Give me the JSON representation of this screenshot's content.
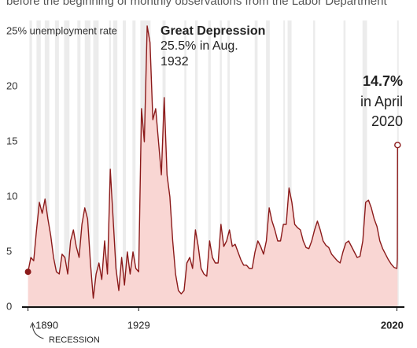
{
  "chart_data": {
    "type": "line",
    "subtitle": "before the beginning of monthly observations from the Labor Department",
    "x": [
      1890,
      1891,
      1892,
      1893,
      1894,
      1895,
      1896,
      1897,
      1898,
      1899,
      1900,
      1901,
      1902,
      1903,
      1904,
      1905,
      1906,
      1907,
      1908,
      1909,
      1910,
      1911,
      1912,
      1913,
      1914,
      1915,
      1916,
      1917,
      1918,
      1919,
      1920,
      1921,
      1922,
      1923,
      1924,
      1925,
      1926,
      1927,
      1928,
      1929,
      1930,
      1931,
      1932,
      1933,
      1934,
      1935,
      1936,
      1937,
      1938,
      1939,
      1940,
      1941,
      1942,
      1943,
      1944,
      1945,
      1946,
      1947,
      1948,
      1949,
      1950,
      1951,
      1952,
      1953,
      1954,
      1955,
      1956,
      1957,
      1958,
      1959,
      1960,
      1961,
      1962,
      1963,
      1964,
      1965,
      1966,
      1967,
      1968,
      1969,
      1970,
      1971,
      1972,
      1973,
      1974,
      1975,
      1976,
      1977,
      1978,
      1979,
      1980,
      1981,
      1982,
      1983,
      1984,
      1985,
      1986,
      1987,
      1988,
      1989,
      1990,
      1991,
      1992,
      1993,
      1994,
      1995,
      1996,
      1997,
      1998,
      1999,
      2000,
      2001,
      2002,
      2003,
      2004,
      2005,
      2006,
      2007,
      2008,
      2009,
      2010,
      2011,
      2012,
      2013,
      2014,
      2015,
      2016,
      2017,
      2018,
      2019,
      2020,
      2020.17,
      2020.25
    ],
    "values": [
      3.2,
      4.5,
      4.2,
      7,
      9.5,
      8.5,
      9.8,
      8,
      6.5,
      4.5,
      3.2,
      3,
      4.8,
      4.5,
      3,
      6,
      7,
      5.5,
      4.5,
      7.5,
      9,
      8,
      4,
      0.8,
      3,
      4,
      2.5,
      6,
      3,
      12.5,
      8,
      3.5,
      1.5,
      4.5,
      2,
      5,
      3,
      5,
      3.5,
      3.2,
      18,
      15,
      25.5,
      24,
      17,
      18,
      15,
      12,
      19,
      12,
      10,
      6,
      3,
      1.5,
      1.2,
      1.5,
      4,
      4.5,
      3.5,
      7,
      5.5,
      3.5,
      3,
      2.8,
      6,
      4.5,
      4,
      4,
      7.5,
      5.5,
      6,
      7,
      5.5,
      5.7,
      5,
      4.3,
      3.8,
      3.8,
      3.5,
      3.5,
      5,
      6,
      5.5,
      4.8,
      6,
      9,
      7.8,
      7,
      6,
      6,
      7.5,
      7.5,
      10.8,
      9.5,
      7.5,
      7.2,
      7,
      6,
      5.4,
      5.3,
      6,
      7,
      7.8,
      7,
      6,
      5.6,
      5.4,
      4.8,
      4.5,
      4.2,
      4,
      5,
      5.8,
      6,
      5.5,
      5,
      4.5,
      4.6,
      6,
      9.5,
      9.7,
      9,
      8,
      7.3,
      6,
      5.3,
      4.8,
      4.3,
      3.9,
      3.6,
      3.5,
      4.4,
      14.7
    ],
    "color": "#8b1a1a",
    "fill": "#f9d6d3",
    "recessions": [
      [
        1890.5,
        1891.4
      ],
      [
        1893,
        1894.5
      ],
      [
        1895.9,
        1897.5
      ],
      [
        1899.5,
        1900.9
      ],
      [
        1902.7,
        1904.6
      ],
      [
        1907.4,
        1908.5
      ],
      [
        1910,
        1912
      ],
      [
        1913,
        1914.9
      ],
      [
        1918.6,
        1919.2
      ],
      [
        1920,
        1921.5
      ],
      [
        1923.4,
        1924.5
      ],
      [
        1926.8,
        1927.9
      ],
      [
        1929.6,
        1933.2
      ],
      [
        1937.4,
        1938.5
      ],
      [
        1945.1,
        1945.8
      ],
      [
        1948.9,
        1949.8
      ],
      [
        1953.5,
        1954.4
      ],
      [
        1957.6,
        1958.3
      ],
      [
        1960.3,
        1961.1
      ],
      [
        1969.9,
        1970.9
      ],
      [
        1973.9,
        1975.2
      ],
      [
        1980,
        1980.5
      ],
      [
        1981.5,
        1982.9
      ],
      [
        1990.5,
        1991.2
      ],
      [
        2001.2,
        2001.9
      ],
      [
        2007.9,
        2009.5
      ],
      [
        2020.1,
        2020.4
      ]
    ],
    "recession_label": "RECESSION",
    "xlim": [
      1889,
      2021
    ],
    "ylim": [
      0,
      26
    ],
    "xticks": [
      1890,
      1929,
      2020
    ],
    "yticks": [
      0,
      5,
      10,
      15,
      20,
      {
        "value": 25,
        "label": "25% unemployment rate"
      }
    ],
    "annotations": [
      "Great Depression",
      "25.5% in Aug.",
      "1932",
      "14.7%",
      "in April",
      "2020"
    ],
    "grid": false
  }
}
